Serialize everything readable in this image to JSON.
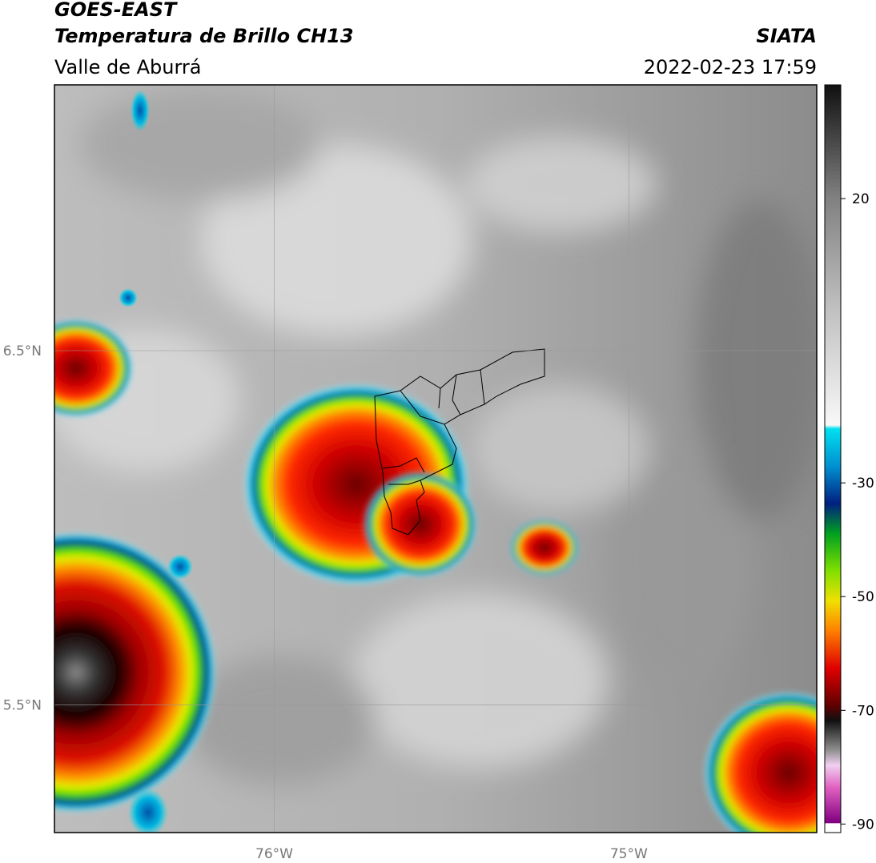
{
  "header": {
    "title": "GOES-EAST",
    "subtitle": "Temperatura de Brillo CH13",
    "region": "Valle de Aburrá",
    "source": "SIATA",
    "datetime": "2022-02-23 17:59"
  },
  "map": {
    "xlim": [
      -76.62,
      -74.47
    ],
    "ylim": [
      5.14,
      7.25
    ],
    "xticks": [
      {
        "value": -76,
        "label": "76°W"
      },
      {
        "value": -75,
        "label": "75°W"
      }
    ],
    "yticks": [
      {
        "value": 6.5,
        "label": "6.5°N"
      },
      {
        "value": 5.5,
        "label": "5.5°N"
      }
    ],
    "grid": true
  },
  "colorbar": {
    "lim": [
      -91.5,
      40
    ],
    "ticks": [
      20,
      -30,
      -50,
      -70,
      -90
    ]
  }
}
